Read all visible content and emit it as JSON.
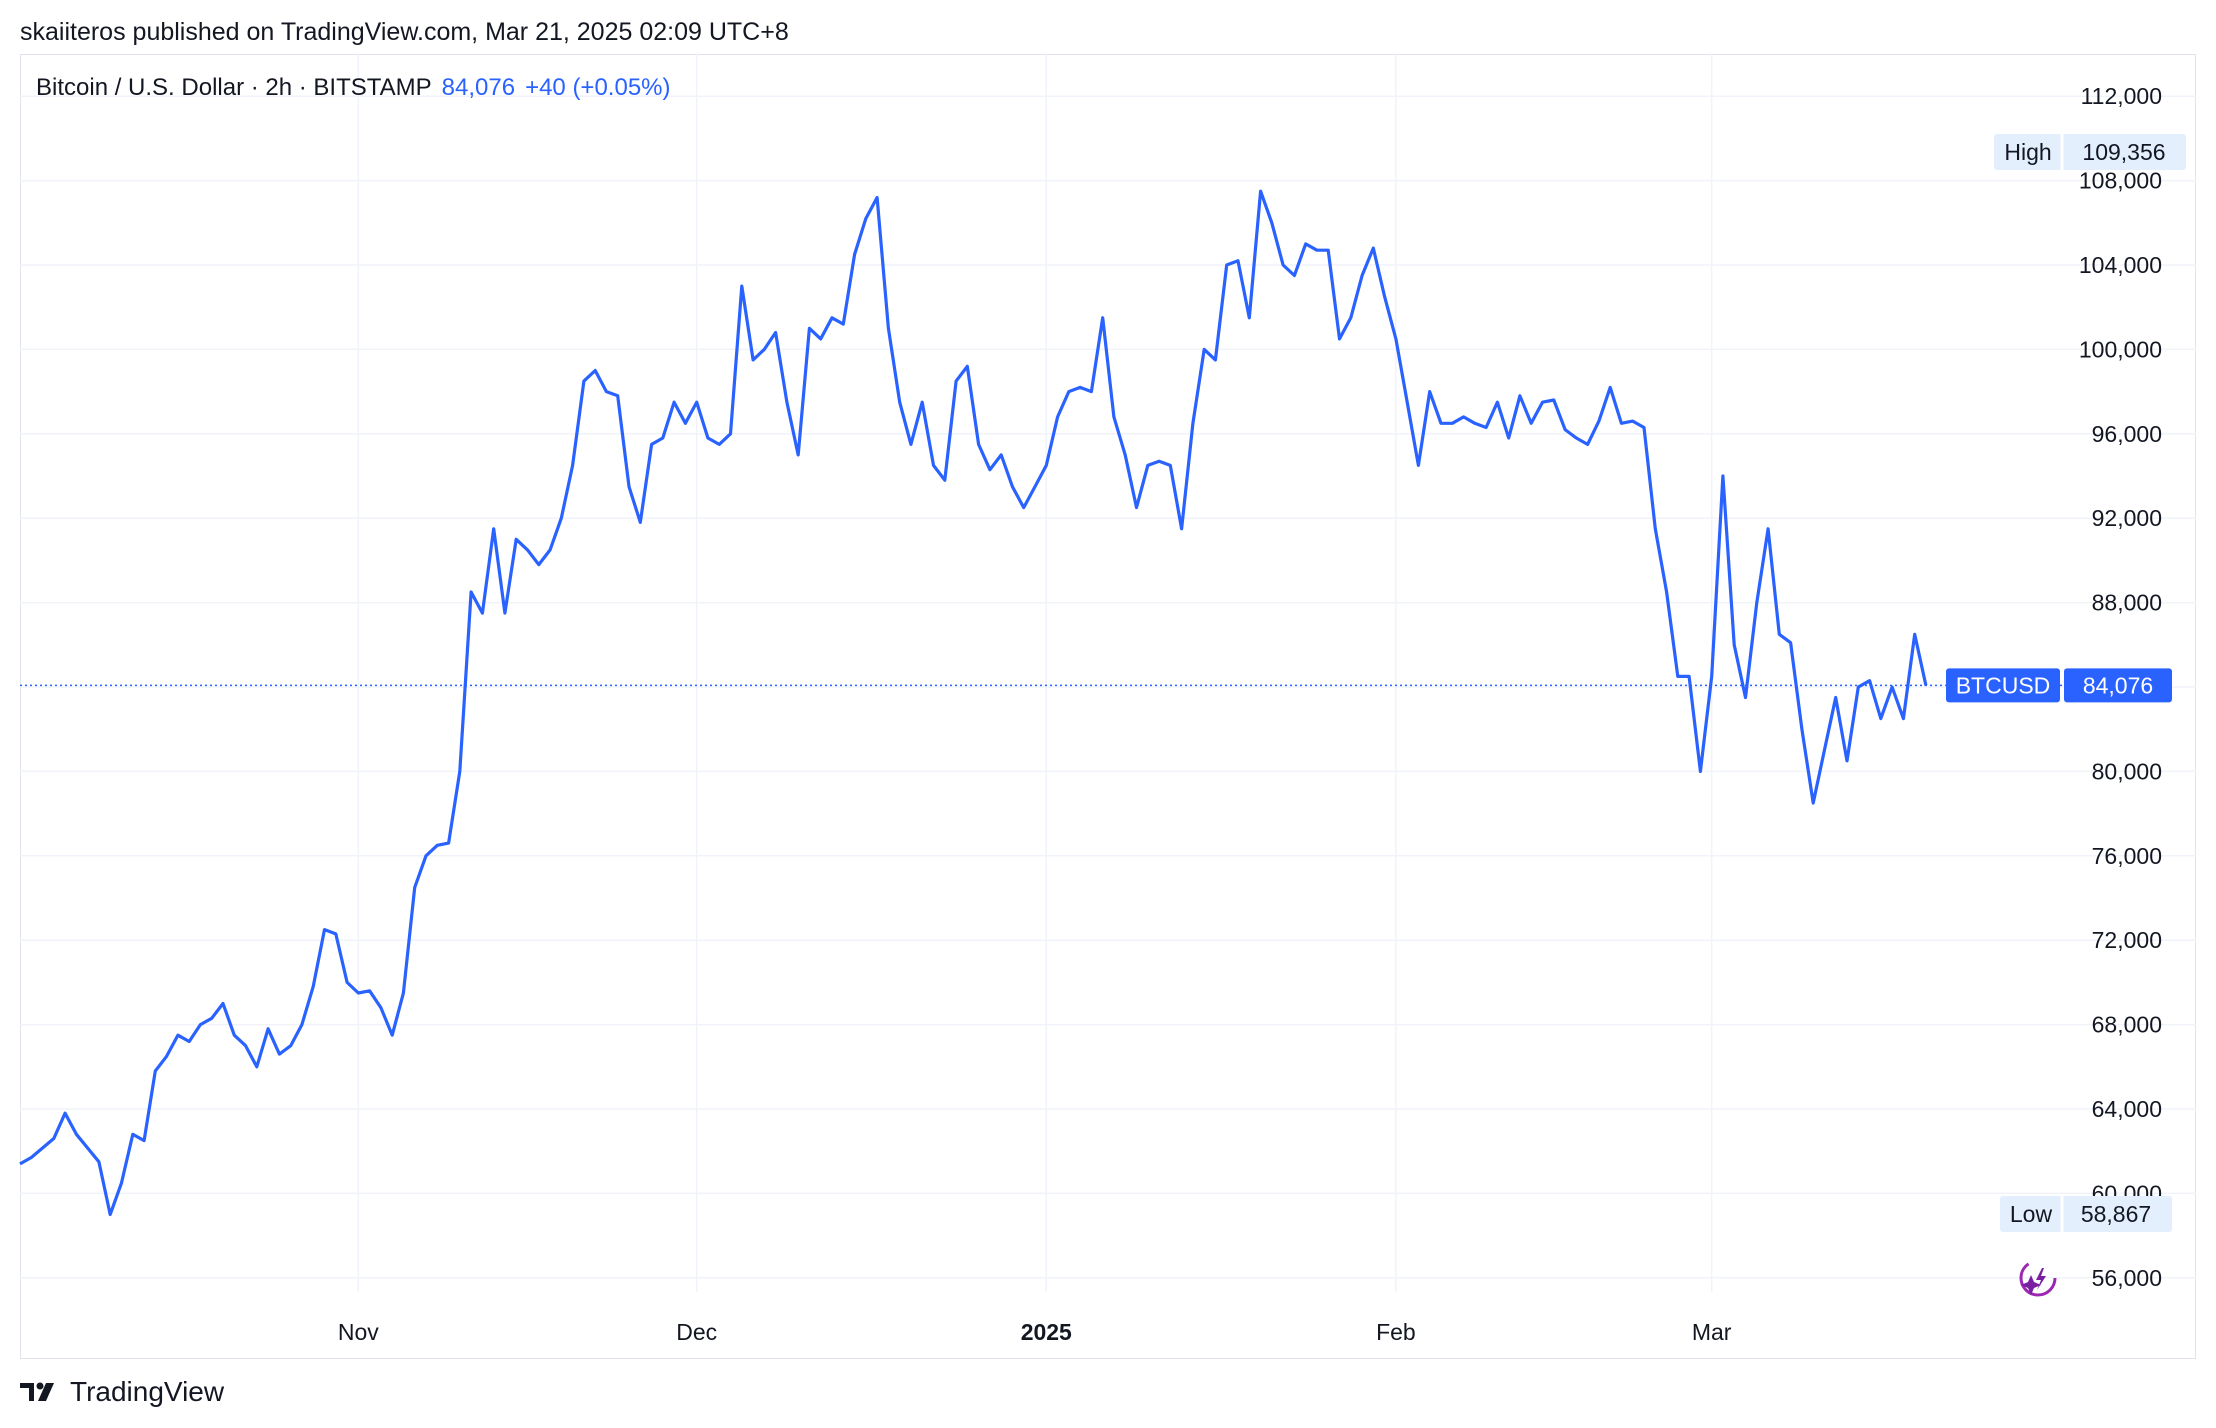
{
  "header": {
    "published_line": "skaiiteros published on TradingView.com, Mar 21, 2025 02:09 UTC+8"
  },
  "legend": {
    "symbol_line": "Bitcoin / U.S. Dollar · 2h · BITSTAMP",
    "last_price": "84,076",
    "change": "+40 (+0.05%)"
  },
  "badges": {
    "high_label": "High",
    "high_value": "109,356",
    "low_label": "Low",
    "low_value": "58,867",
    "ticker_label": "BTCUSD",
    "ticker_value": "84,076"
  },
  "footer": {
    "brand": "TradingView",
    "logo_icon": "tradingview-logo-icon"
  },
  "colors": {
    "line": "#2962ff",
    "grid": "#f0f3fa",
    "badge_bg": "#2962ff",
    "hl_badge_bg": "#e3effd"
  },
  "chart_data": {
    "type": "line",
    "title": "Bitcoin / U.S. Dollar · 2h · BITSTAMP",
    "xlabel": "",
    "ylabel": "",
    "y_ticks": [
      112000,
      108000,
      104000,
      100000,
      96000,
      92000,
      88000,
      84000,
      80000,
      76000,
      72000,
      68000,
      64000,
      60000,
      56000
    ],
    "y_tick_labels": [
      "112,000",
      "108,000",
      "104,000",
      "100,000",
      "96,000",
      "92,000",
      "88,000",
      "84,000",
      "80,000",
      "76,000",
      "72,000",
      "68,000",
      "64,000",
      "60,000",
      "56,000"
    ],
    "ylim": [
      54000,
      114000
    ],
    "x_range": [
      "2024-10-02",
      "2025-03-31"
    ],
    "x_ticks": [
      {
        "label": "Nov",
        "date": "2024-11-01",
        "bold": false
      },
      {
        "label": "Dec",
        "date": "2024-12-01",
        "bold": false
      },
      {
        "label": "2025",
        "date": "2025-01-01",
        "bold": true
      },
      {
        "label": "Feb",
        "date": "2025-02-01",
        "bold": false
      },
      {
        "label": "Mar",
        "date": "2025-03-01",
        "bold": false
      }
    ],
    "last_price": 84076,
    "high": 109356,
    "low": 58867,
    "series": [
      {
        "name": "BTCUSD",
        "points": [
          [
            "2024-10-02",
            61400
          ],
          [
            "2024-10-03",
            61700
          ],
          [
            "2024-10-05",
            62600
          ],
          [
            "2024-10-06",
            63800
          ],
          [
            "2024-10-07",
            62800
          ],
          [
            "2024-10-09",
            61500
          ],
          [
            "2024-10-10",
            59000
          ],
          [
            "2024-10-11",
            60500
          ],
          [
            "2024-10-12",
            62800
          ],
          [
            "2024-10-13",
            62500
          ],
          [
            "2024-10-14",
            65800
          ],
          [
            "2024-10-15",
            66500
          ],
          [
            "2024-10-16",
            67500
          ],
          [
            "2024-10-17",
            67200
          ],
          [
            "2024-10-18",
            68000
          ],
          [
            "2024-10-19",
            68300
          ],
          [
            "2024-10-20",
            69000
          ],
          [
            "2024-10-21",
            67500
          ],
          [
            "2024-10-22",
            67000
          ],
          [
            "2024-10-23",
            66000
          ],
          [
            "2024-10-24",
            67800
          ],
          [
            "2024-10-25",
            66600
          ],
          [
            "2024-10-26",
            67000
          ],
          [
            "2024-10-27",
            68000
          ],
          [
            "2024-10-28",
            69800
          ],
          [
            "2024-10-29",
            72500
          ],
          [
            "2024-10-30",
            72300
          ],
          [
            "2024-10-31",
            70000
          ],
          [
            "2024-11-01",
            69500
          ],
          [
            "2024-11-02",
            69600
          ],
          [
            "2024-11-03",
            68800
          ],
          [
            "2024-11-04",
            67500
          ],
          [
            "2024-11-05",
            69500
          ],
          [
            "2024-11-06",
            74500
          ],
          [
            "2024-11-07",
            76000
          ],
          [
            "2024-11-08",
            76500
          ],
          [
            "2024-11-09",
            76600
          ],
          [
            "2024-11-10",
            80000
          ],
          [
            "2024-11-11",
            88500
          ],
          [
            "2024-11-12",
            87500
          ],
          [
            "2024-11-13",
            91500
          ],
          [
            "2024-11-14",
            87500
          ],
          [
            "2024-11-15",
            91000
          ],
          [
            "2024-11-16",
            90500
          ],
          [
            "2024-11-17",
            89800
          ],
          [
            "2024-11-18",
            90500
          ],
          [
            "2024-11-19",
            92000
          ],
          [
            "2024-11-20",
            94500
          ],
          [
            "2024-11-21",
            98500
          ],
          [
            "2024-11-22",
            99000
          ],
          [
            "2024-11-23",
            98000
          ],
          [
            "2024-11-24",
            97800
          ],
          [
            "2024-11-25",
            93500
          ],
          [
            "2024-11-26",
            91800
          ],
          [
            "2024-11-27",
            95500
          ],
          [
            "2024-11-28",
            95800
          ],
          [
            "2024-11-29",
            97500
          ],
          [
            "2024-11-30",
            96500
          ],
          [
            "2024-12-01",
            97500
          ],
          [
            "2024-12-02",
            95800
          ],
          [
            "2024-12-03",
            95500
          ],
          [
            "2024-12-04",
            96000
          ],
          [
            "2024-12-05",
            103000
          ],
          [
            "2024-12-06",
            99500
          ],
          [
            "2024-12-07",
            100000
          ],
          [
            "2024-12-08",
            100800
          ],
          [
            "2024-12-09",
            97500
          ],
          [
            "2024-12-10",
            95000
          ],
          [
            "2024-12-11",
            101000
          ],
          [
            "2024-12-12",
            100500
          ],
          [
            "2024-12-13",
            101500
          ],
          [
            "2024-12-14",
            101200
          ],
          [
            "2024-12-15",
            104500
          ],
          [
            "2024-12-16",
            106200
          ],
          [
            "2024-12-17",
            107200
          ],
          [
            "2024-12-18",
            101000
          ],
          [
            "2024-12-19",
            97500
          ],
          [
            "2024-12-20",
            95500
          ],
          [
            "2024-12-21",
            97500
          ],
          [
            "2024-12-22",
            94500
          ],
          [
            "2024-12-23",
            93800
          ],
          [
            "2024-12-24",
            98500
          ],
          [
            "2024-12-25",
            99200
          ],
          [
            "2024-12-26",
            95500
          ],
          [
            "2024-12-27",
            94300
          ],
          [
            "2024-12-28",
            95000
          ],
          [
            "2024-12-29",
            93500
          ],
          [
            "2024-12-30",
            92500
          ],
          [
            "2024-12-31",
            93500
          ],
          [
            "2025-01-01",
            94500
          ],
          [
            "2025-01-02",
            96800
          ],
          [
            "2025-01-03",
            98000
          ],
          [
            "2025-01-04",
            98200
          ],
          [
            "2025-01-05",
            98000
          ],
          [
            "2025-01-06",
            101500
          ],
          [
            "2025-01-07",
            96800
          ],
          [
            "2025-01-08",
            95000
          ],
          [
            "2025-01-09",
            92500
          ],
          [
            "2025-01-10",
            94500
          ],
          [
            "2025-01-11",
            94700
          ],
          [
            "2025-01-12",
            94500
          ],
          [
            "2025-01-13",
            91500
          ],
          [
            "2025-01-14",
            96500
          ],
          [
            "2025-01-15",
            100000
          ],
          [
            "2025-01-16",
            99500
          ],
          [
            "2025-01-17",
            104000
          ],
          [
            "2025-01-18",
            104200
          ],
          [
            "2025-01-19",
            101500
          ],
          [
            "2025-01-20",
            107500
          ],
          [
            "2025-01-21",
            106000
          ],
          [
            "2025-01-22",
            104000
          ],
          [
            "2025-01-23",
            103500
          ],
          [
            "2025-01-24",
            105000
          ],
          [
            "2025-01-25",
            104700
          ],
          [
            "2025-01-26",
            104700
          ],
          [
            "2025-01-27",
            100500
          ],
          [
            "2025-01-28",
            101500
          ],
          [
            "2025-01-29",
            103500
          ],
          [
            "2025-01-30",
            104800
          ],
          [
            "2025-01-31",
            102500
          ],
          [
            "2025-02-01",
            100500
          ],
          [
            "2025-02-02",
            97500
          ],
          [
            "2025-02-03",
            94500
          ],
          [
            "2025-02-04",
            98000
          ],
          [
            "2025-02-05",
            96500
          ],
          [
            "2025-02-06",
            96500
          ],
          [
            "2025-02-07",
            96800
          ],
          [
            "2025-02-08",
            96500
          ],
          [
            "2025-02-09",
            96300
          ],
          [
            "2025-02-10",
            97500
          ],
          [
            "2025-02-11",
            95800
          ],
          [
            "2025-02-12",
            97800
          ],
          [
            "2025-02-13",
            96500
          ],
          [
            "2025-02-14",
            97500
          ],
          [
            "2025-02-15",
            97600
          ],
          [
            "2025-02-16",
            96200
          ],
          [
            "2025-02-17",
            95800
          ],
          [
            "2025-02-18",
            95500
          ],
          [
            "2025-02-19",
            96600
          ],
          [
            "2025-02-20",
            98200
          ],
          [
            "2025-02-21",
            96500
          ],
          [
            "2025-02-22",
            96600
          ],
          [
            "2025-02-23",
            96300
          ],
          [
            "2025-02-24",
            91500
          ],
          [
            "2025-02-25",
            88500
          ],
          [
            "2025-02-26",
            84500
          ],
          [
            "2025-02-27",
            84500
          ],
          [
            "2025-02-28",
            80000
          ],
          [
            "2025-03-01",
            84500
          ],
          [
            "2025-03-02",
            94000
          ],
          [
            "2025-03-03",
            86000
          ],
          [
            "2025-03-04",
            83500
          ],
          [
            "2025-03-05",
            88000
          ],
          [
            "2025-03-06",
            91500
          ],
          [
            "2025-03-07",
            86500
          ],
          [
            "2025-03-08",
            86100
          ],
          [
            "2025-03-09",
            82000
          ],
          [
            "2025-03-10",
            78500
          ],
          [
            "2025-03-11",
            81000
          ],
          [
            "2025-03-12",
            83500
          ],
          [
            "2025-03-13",
            80500
          ],
          [
            "2025-03-14",
            84000
          ],
          [
            "2025-03-15",
            84300
          ],
          [
            "2025-03-16",
            82500
          ],
          [
            "2025-03-17",
            84000
          ],
          [
            "2025-03-18",
            82500
          ],
          [
            "2025-03-19",
            86500
          ],
          [
            "2025-03-20",
            84076
          ]
        ]
      }
    ]
  }
}
